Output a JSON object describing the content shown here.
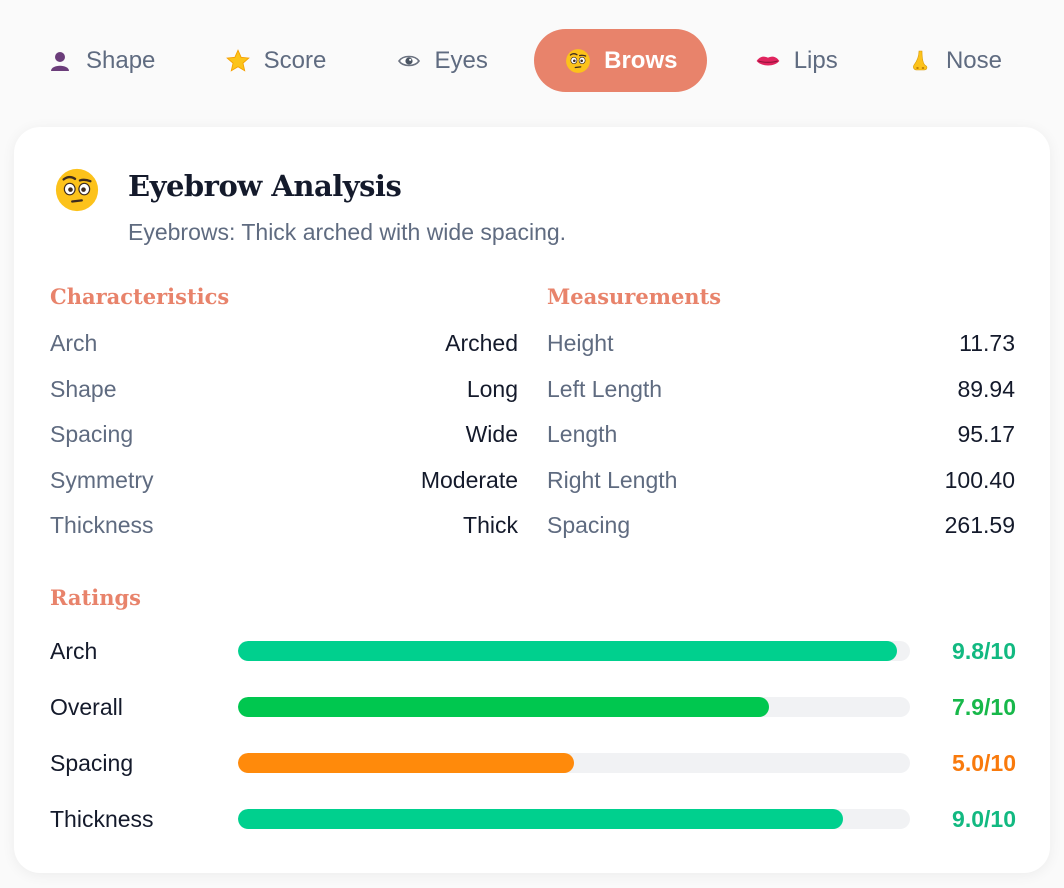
{
  "tabs": [
    {
      "label": "Shape",
      "icon": "bust-silhouette-icon",
      "active": false
    },
    {
      "label": "Score",
      "icon": "star-icon",
      "active": false
    },
    {
      "label": "Eyes",
      "icon": "eye-icon",
      "active": false
    },
    {
      "label": "Brows",
      "icon": "raised-eyebrow-face-icon",
      "active": true
    },
    {
      "label": "Lips",
      "icon": "lips-icon",
      "active": false
    },
    {
      "label": "Nose",
      "icon": "nose-icon",
      "active": false
    }
  ],
  "card": {
    "icon": "raised-eyebrow-face-icon",
    "title": "Eyebrow Analysis",
    "subtitle": "Eyebrows: Thick arched with wide spacing."
  },
  "characteristics": {
    "title": "Characteristics",
    "items": [
      {
        "label": "Arch",
        "value": "Arched"
      },
      {
        "label": "Shape",
        "value": "Long"
      },
      {
        "label": "Spacing",
        "value": "Wide"
      },
      {
        "label": "Symmetry",
        "value": "Moderate"
      },
      {
        "label": "Thickness",
        "value": "Thick"
      }
    ]
  },
  "measurements": {
    "title": "Measurements",
    "items": [
      {
        "label": "Height",
        "value": "11.73"
      },
      {
        "label": "Left Length",
        "value": "89.94"
      },
      {
        "label": "Length",
        "value": "95.17"
      },
      {
        "label": "Right Length",
        "value": "100.40"
      },
      {
        "label": "Spacing",
        "value": "261.59"
      }
    ]
  },
  "ratings": {
    "title": "Ratings",
    "items": [
      {
        "label": "Arch",
        "score": 9.8,
        "value": "9.8/10",
        "bar_color": "#00d08e",
        "text_color": "#12b981"
      },
      {
        "label": "Overall",
        "score": 7.9,
        "value": "7.9/10",
        "bar_color": "#00c74f",
        "text_color": "#17b84a"
      },
      {
        "label": "Spacing",
        "score": 5.0,
        "value": "5.0/10",
        "bar_color": "#ff8a0b",
        "text_color": "#f97a0c"
      },
      {
        "label": "Thickness",
        "score": 9.0,
        "value": "9.0/10",
        "bar_color": "#00d08e",
        "text_color": "#12b981"
      }
    ],
    "max": 10
  },
  "colors": {
    "accent": "#e8836b",
    "muted_text": "#5f6b80",
    "strong_text": "#141a2b",
    "track": "#f1f2f4"
  }
}
